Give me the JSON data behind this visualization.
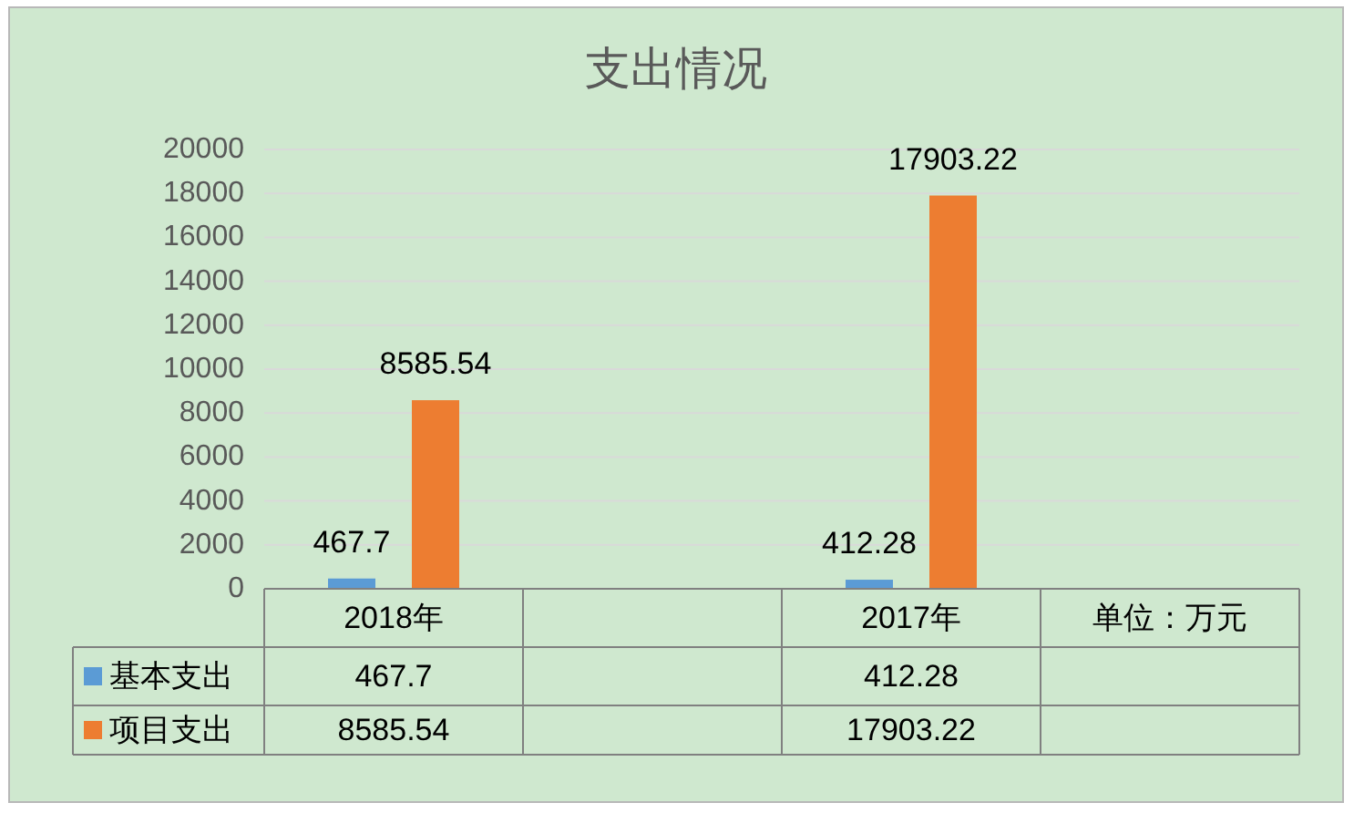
{
  "chart_data": {
    "type": "bar",
    "title": "支出情况",
    "categories": [
      "2018年",
      null,
      "2017年",
      "单位：万元"
    ],
    "series": [
      {
        "name": "基本支出",
        "color": "#5b9bd5",
        "values": [
          467.7,
          null,
          412.28,
          null
        ],
        "value_labels": [
          "467.7",
          null,
          "412.28",
          null
        ]
      },
      {
        "name": "项目支出",
        "color": "#ed7d31",
        "values": [
          8585.54,
          null,
          17903.22,
          null
        ],
        "value_labels": [
          "8585.54",
          null,
          "17903.22",
          null
        ]
      }
    ],
    "annotations": [
      "467.7",
      "412.28",
      "8585.54",
      "17903.22"
    ],
    "ylim": [
      0,
      20000
    ],
    "yticks": [
      0,
      2000,
      4000,
      6000,
      8000,
      10000,
      12000,
      14000,
      16000,
      18000,
      20000
    ],
    "grid": "y",
    "data_labels": true,
    "legend": "bottom left"
  }
}
